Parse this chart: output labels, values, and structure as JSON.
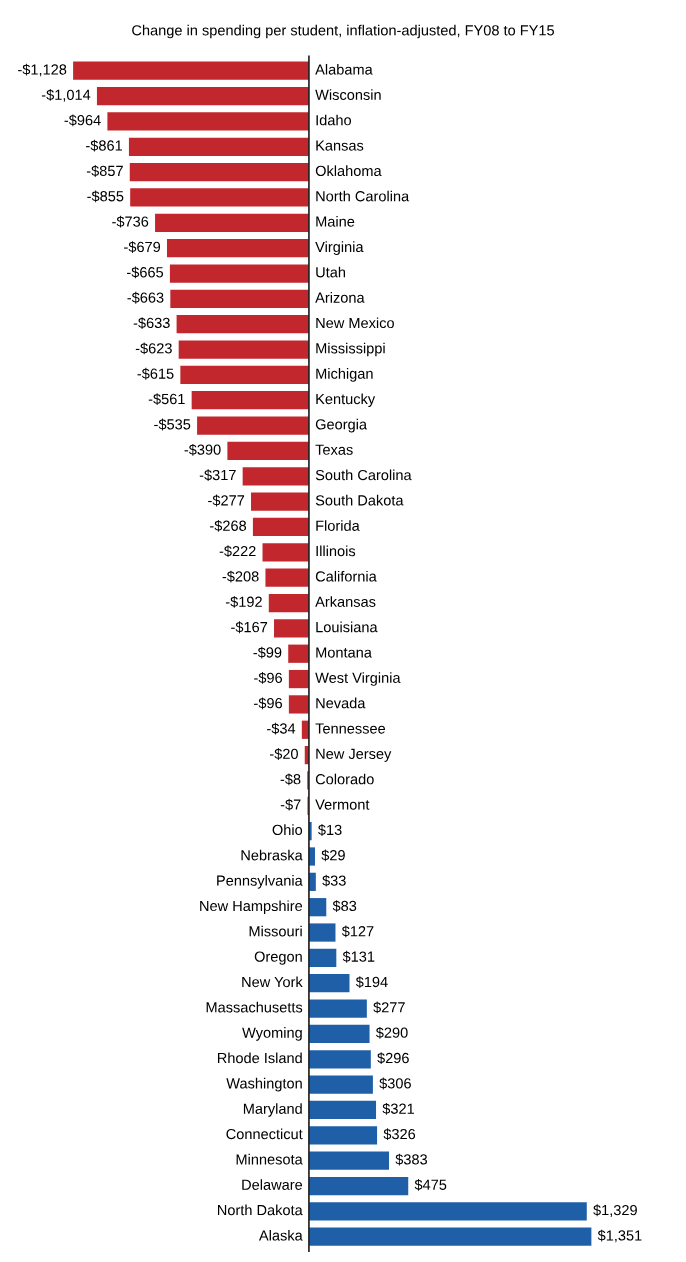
{
  "chart_data": {
    "type": "bar",
    "orientation": "horizontal",
    "title": "Change in spending per student, inflation-adjusted, FY08 to FY15",
    "categories": [
      "Alabama",
      "Wisconsin",
      "Idaho",
      "Kansas",
      "Oklahoma",
      "North Carolina",
      "Maine",
      "Virginia",
      "Utah",
      "Arizona",
      "New Mexico",
      "Mississippi",
      "Michigan",
      "Kentucky",
      "Georgia",
      "Texas",
      "South Carolina",
      "South Dakota",
      "Florida",
      "Illinois",
      "California",
      "Arkansas",
      "Louisiana",
      "Montana",
      "West Virginia",
      "Nevada",
      "Tennessee",
      "New Jersey",
      "Colorado",
      "Vermont",
      "Ohio",
      "Nebraska",
      "Pennsylvania",
      "New Hampshire",
      "Missouri",
      "Oregon",
      "New York",
      "Massachusetts",
      "Wyoming",
      "Rhode Island",
      "Washington",
      "Maryland",
      "Connecticut",
      "Minnesota",
      "Delaware",
      "North Dakota",
      "Alaska"
    ],
    "values": [
      -1128,
      -1014,
      -964,
      -861,
      -857,
      -855,
      -736,
      -679,
      -665,
      -663,
      -633,
      -623,
      -615,
      -561,
      -535,
      -390,
      -317,
      -277,
      -268,
      -222,
      -208,
      -192,
      -167,
      -99,
      -96,
      -96,
      -34,
      -20,
      -8,
      -7,
      13,
      29,
      33,
      83,
      127,
      131,
      194,
      277,
      290,
      296,
      306,
      321,
      326,
      383,
      475,
      1329,
      1351
    ],
    "value_labels": [
      "-$1,128",
      "-$1,014",
      "-$964",
      "-$861",
      "-$857",
      "-$855",
      "-$736",
      "-$679",
      "-$665",
      "-$663",
      "-$633",
      "-$623",
      "-$615",
      "-$561",
      "-$535",
      "-$390",
      "-$317",
      "-$277",
      "-$268",
      "-$222",
      "-$208",
      "-$192",
      "-$167",
      "-$99",
      "-$96",
      "-$96",
      "-$34",
      "-$20",
      "-$8",
      "-$7",
      "$13",
      "$29",
      "$33",
      "$83",
      "$127",
      "$131",
      "$194",
      "$277",
      "$290",
      "$296",
      "$306",
      "$321",
      "$326",
      "$383",
      "$475",
      "$1,329",
      "$1,351"
    ],
    "colors": [
      "#c1272d",
      "#c1272d",
      "#c1272d",
      "#c1272d",
      "#c1272d",
      "#c1272d",
      "#c1272d",
      "#c1272d",
      "#c1272d",
      "#c1272d",
      "#c1272d",
      "#c1272d",
      "#c1272d",
      "#c1272d",
      "#c1272d",
      "#c1272d",
      "#c1272d",
      "#c1272d",
      "#c1272d",
      "#c1272d",
      "#c1272d",
      "#c1272d",
      "#c1272d",
      "#c1272d",
      "#c1272d",
      "#c1272d",
      "#c1272d",
      "#c1272d",
      "#c1272d",
      "#c1272d",
      "#1f5fa8",
      "#1f5fa8",
      "#1f5fa8",
      "#1f5fa8",
      "#1f5fa8",
      "#1f5fa8",
      "#1f5fa8",
      "#1f5fa8",
      "#1f5fa8",
      "#1f5fa8",
      "#1f5fa8",
      "#1f5fa8",
      "#1f5fa8",
      "#1f5fa8",
      "#1f5fa8",
      "#1f5fa8",
      "#1f5fa8"
    ]
  }
}
